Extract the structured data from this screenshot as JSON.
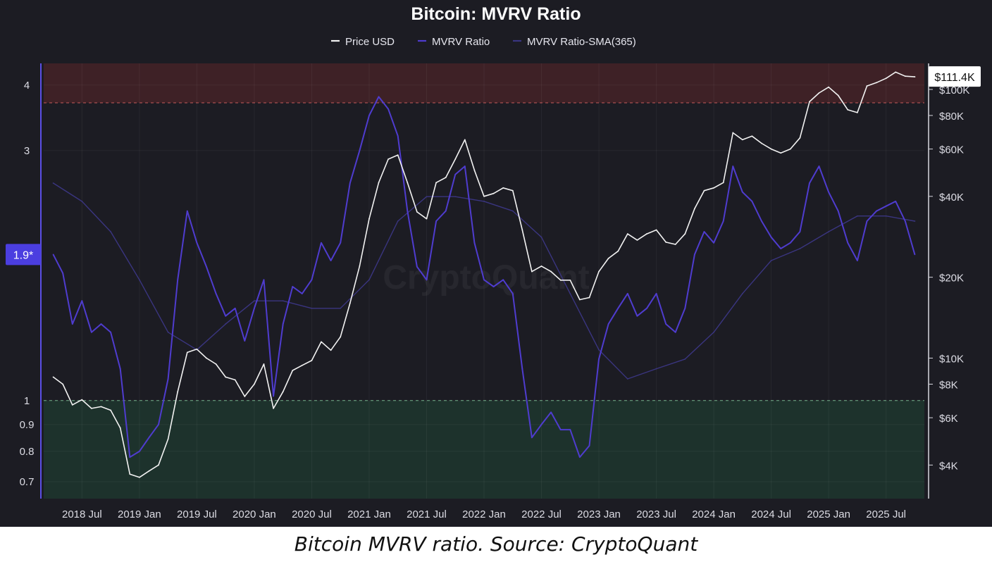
{
  "caption": "Bitcoin MVRV ratio. Source: CryptoQuant",
  "watermark": "CryptoQuant",
  "chart_data": {
    "type": "line",
    "title": "Bitcoin: MVRV Ratio",
    "legend_position": "top-center",
    "grid": true,
    "colors": {
      "background": "#1c1c23",
      "price": "#f2f2f2",
      "mvrv": "#4f3ccf",
      "sma": "#3a3580",
      "overvalued_zone": "#4a2328",
      "undervalued_zone": "#1d3a30",
      "current_badge": "#4b3ee0"
    },
    "series": [
      {
        "name": "Price USD",
        "axis": "right",
        "x": [
          "2018-04",
          "2018-05",
          "2018-06",
          "2018-07",
          "2018-08",
          "2018-09",
          "2018-10",
          "2018-11",
          "2018-12",
          "2019-01",
          "2019-02",
          "2019-03",
          "2019-04",
          "2019-05",
          "2019-06",
          "2019-07",
          "2019-08",
          "2019-09",
          "2019-10",
          "2019-11",
          "2019-12",
          "2020-01",
          "2020-02",
          "2020-03",
          "2020-04",
          "2020-05",
          "2020-06",
          "2020-07",
          "2020-08",
          "2020-09",
          "2020-10",
          "2020-11",
          "2020-12",
          "2021-01",
          "2021-02",
          "2021-03",
          "2021-04",
          "2021-05",
          "2021-06",
          "2021-07",
          "2021-08",
          "2021-09",
          "2021-10",
          "2021-11",
          "2021-12",
          "2022-01",
          "2022-02",
          "2022-03",
          "2022-04",
          "2022-05",
          "2022-06",
          "2022-07",
          "2022-08",
          "2022-09",
          "2022-10",
          "2022-11",
          "2022-12",
          "2023-01",
          "2023-02",
          "2023-03",
          "2023-04",
          "2023-05",
          "2023-06",
          "2023-07",
          "2023-08",
          "2023-09",
          "2023-10",
          "2023-11",
          "2023-12",
          "2024-01",
          "2024-02",
          "2024-03",
          "2024-04",
          "2024-05",
          "2024-06",
          "2024-07",
          "2024-08",
          "2024-09",
          "2024-10",
          "2024-11",
          "2024-12",
          "2025-01",
          "2025-02",
          "2025-03",
          "2025-04",
          "2025-05",
          "2025-06",
          "2025-07",
          "2025-08",
          "2025-09",
          "2025-10"
        ],
        "values": [
          8500,
          8000,
          6700,
          7000,
          6500,
          6600,
          6400,
          5500,
          3700,
          3600,
          3800,
          4000,
          5000,
          7500,
          10500,
          10800,
          10000,
          9500,
          8500,
          8300,
          7200,
          8000,
          9500,
          6500,
          7500,
          9000,
          9400,
          9800,
          11500,
          10700,
          12000,
          16000,
          22000,
          33000,
          45000,
          55000,
          57000,
          45000,
          35000,
          33000,
          45000,
          47000,
          55000,
          65000,
          50000,
          40000,
          41000,
          43000,
          42000,
          30000,
          21000,
          22000,
          21000,
          19500,
          19500,
          16500,
          16800,
          21000,
          23500,
          25000,
          29000,
          27500,
          29000,
          30000,
          27000,
          26500,
          29000,
          36000,
          42000,
          43000,
          45000,
          69000,
          65000,
          67000,
          63000,
          60000,
          58000,
          60000,
          66000,
          90000,
          97000,
          102000,
          95000,
          84000,
          82000,
          103000,
          106000,
          110000,
          116000,
          112000,
          111400
        ]
      },
      {
        "name": "MVRV Ratio",
        "axis": "left",
        "x": [
          "2018-04",
          "2018-05",
          "2018-06",
          "2018-07",
          "2018-08",
          "2018-09",
          "2018-10",
          "2018-11",
          "2018-12",
          "2019-01",
          "2019-02",
          "2019-03",
          "2019-04",
          "2019-05",
          "2019-06",
          "2019-07",
          "2019-08",
          "2019-09",
          "2019-10",
          "2019-11",
          "2019-12",
          "2020-01",
          "2020-02",
          "2020-03",
          "2020-04",
          "2020-05",
          "2020-06",
          "2020-07",
          "2020-08",
          "2020-09",
          "2020-10",
          "2020-11",
          "2020-12",
          "2021-01",
          "2021-02",
          "2021-03",
          "2021-04",
          "2021-05",
          "2021-06",
          "2021-07",
          "2021-08",
          "2021-09",
          "2021-10",
          "2021-11",
          "2021-12",
          "2022-01",
          "2022-02",
          "2022-03",
          "2022-04",
          "2022-05",
          "2022-06",
          "2022-07",
          "2022-08",
          "2022-09",
          "2022-10",
          "2022-11",
          "2022-12",
          "2023-01",
          "2023-02",
          "2023-03",
          "2023-04",
          "2023-05",
          "2023-06",
          "2023-07",
          "2023-08",
          "2023-09",
          "2023-10",
          "2023-11",
          "2023-12",
          "2024-01",
          "2024-02",
          "2024-03",
          "2024-04",
          "2024-05",
          "2024-06",
          "2024-07",
          "2024-08",
          "2024-09",
          "2024-10",
          "2024-11",
          "2024-12",
          "2025-01",
          "2025-02",
          "2025-03",
          "2025-04",
          "2025-05",
          "2025-06",
          "2025-07",
          "2025-08",
          "2025-09",
          "2025-10"
        ],
        "values": [
          1.9,
          1.75,
          1.4,
          1.55,
          1.35,
          1.4,
          1.35,
          1.15,
          0.78,
          0.8,
          0.85,
          0.9,
          1.1,
          1.7,
          2.3,
          2.0,
          1.8,
          1.6,
          1.45,
          1.5,
          1.3,
          1.5,
          1.7,
          1.02,
          1.4,
          1.65,
          1.6,
          1.7,
          2.0,
          1.85,
          2.0,
          2.6,
          3.0,
          3.5,
          3.8,
          3.6,
          3.2,
          2.3,
          1.8,
          1.7,
          2.2,
          2.3,
          2.7,
          2.8,
          2.0,
          1.7,
          1.65,
          1.7,
          1.6,
          1.15,
          0.85,
          0.9,
          0.95,
          0.88,
          0.88,
          0.78,
          0.82,
          1.2,
          1.4,
          1.5,
          1.6,
          1.45,
          1.5,
          1.6,
          1.4,
          1.35,
          1.5,
          1.9,
          2.1,
          2.0,
          2.2,
          2.8,
          2.5,
          2.4,
          2.2,
          2.05,
          1.95,
          2.0,
          2.1,
          2.6,
          2.8,
          2.5,
          2.3,
          2.0,
          1.85,
          2.2,
          2.3,
          2.35,
          2.4,
          2.2,
          1.9
        ]
      },
      {
        "name": "MVRV Ratio-SMA(365)",
        "axis": "left",
        "x": [
          "2018-04",
          "2018-07",
          "2018-10",
          "2019-01",
          "2019-04",
          "2019-07",
          "2019-10",
          "2020-01",
          "2020-04",
          "2020-07",
          "2020-10",
          "2021-01",
          "2021-04",
          "2021-07",
          "2021-10",
          "2022-01",
          "2022-04",
          "2022-07",
          "2022-10",
          "2023-01",
          "2023-04",
          "2023-07",
          "2023-10",
          "2024-01",
          "2024-04",
          "2024-07",
          "2024-10",
          "2025-01",
          "2025-04",
          "2025-07",
          "2025-10"
        ],
        "values": [
          2.6,
          2.4,
          2.1,
          1.7,
          1.35,
          1.25,
          1.4,
          1.55,
          1.55,
          1.5,
          1.5,
          1.7,
          2.2,
          2.45,
          2.45,
          2.4,
          2.3,
          2.05,
          1.6,
          1.25,
          1.1,
          1.15,
          1.2,
          1.35,
          1.6,
          1.85,
          1.95,
          2.1,
          2.25,
          2.25,
          2.2
        ]
      }
    ],
    "y_left": {
      "scale": "log",
      "range": [
        0.65,
        4.4
      ],
      "ticks": [
        "4",
        "3",
        "1",
        "0.9",
        "0.8",
        "0.7"
      ]
    },
    "y_right": {
      "scale": "log",
      "range": [
        3000,
        125000
      ],
      "ticks": [
        "$100K",
        "$80K",
        "$60K",
        "$40K",
        "$20K",
        "$10K",
        "$8K",
        "$6K",
        "$4K"
      ]
    },
    "x_axis": {
      "range": [
        "2018-03",
        "2025-11"
      ],
      "ticks": [
        "2018 Jul",
        "2019 Jan",
        "2019 Jul",
        "2020 Jan",
        "2020 Jul",
        "2021 Jan",
        "2021 Jul",
        "2022 Jan",
        "2022 Jul",
        "2023 Jan",
        "2023 Jul",
        "2024 Jan",
        "2024 Jul",
        "2025 Jan",
        "2025 Jul"
      ]
    },
    "zones": [
      {
        "from": 3.7,
        "to": 4.4
      },
      {
        "from": 0.65,
        "to": 1.0
      }
    ],
    "current_values": {
      "left": "1.9*",
      "right": "$111.4K"
    }
  }
}
